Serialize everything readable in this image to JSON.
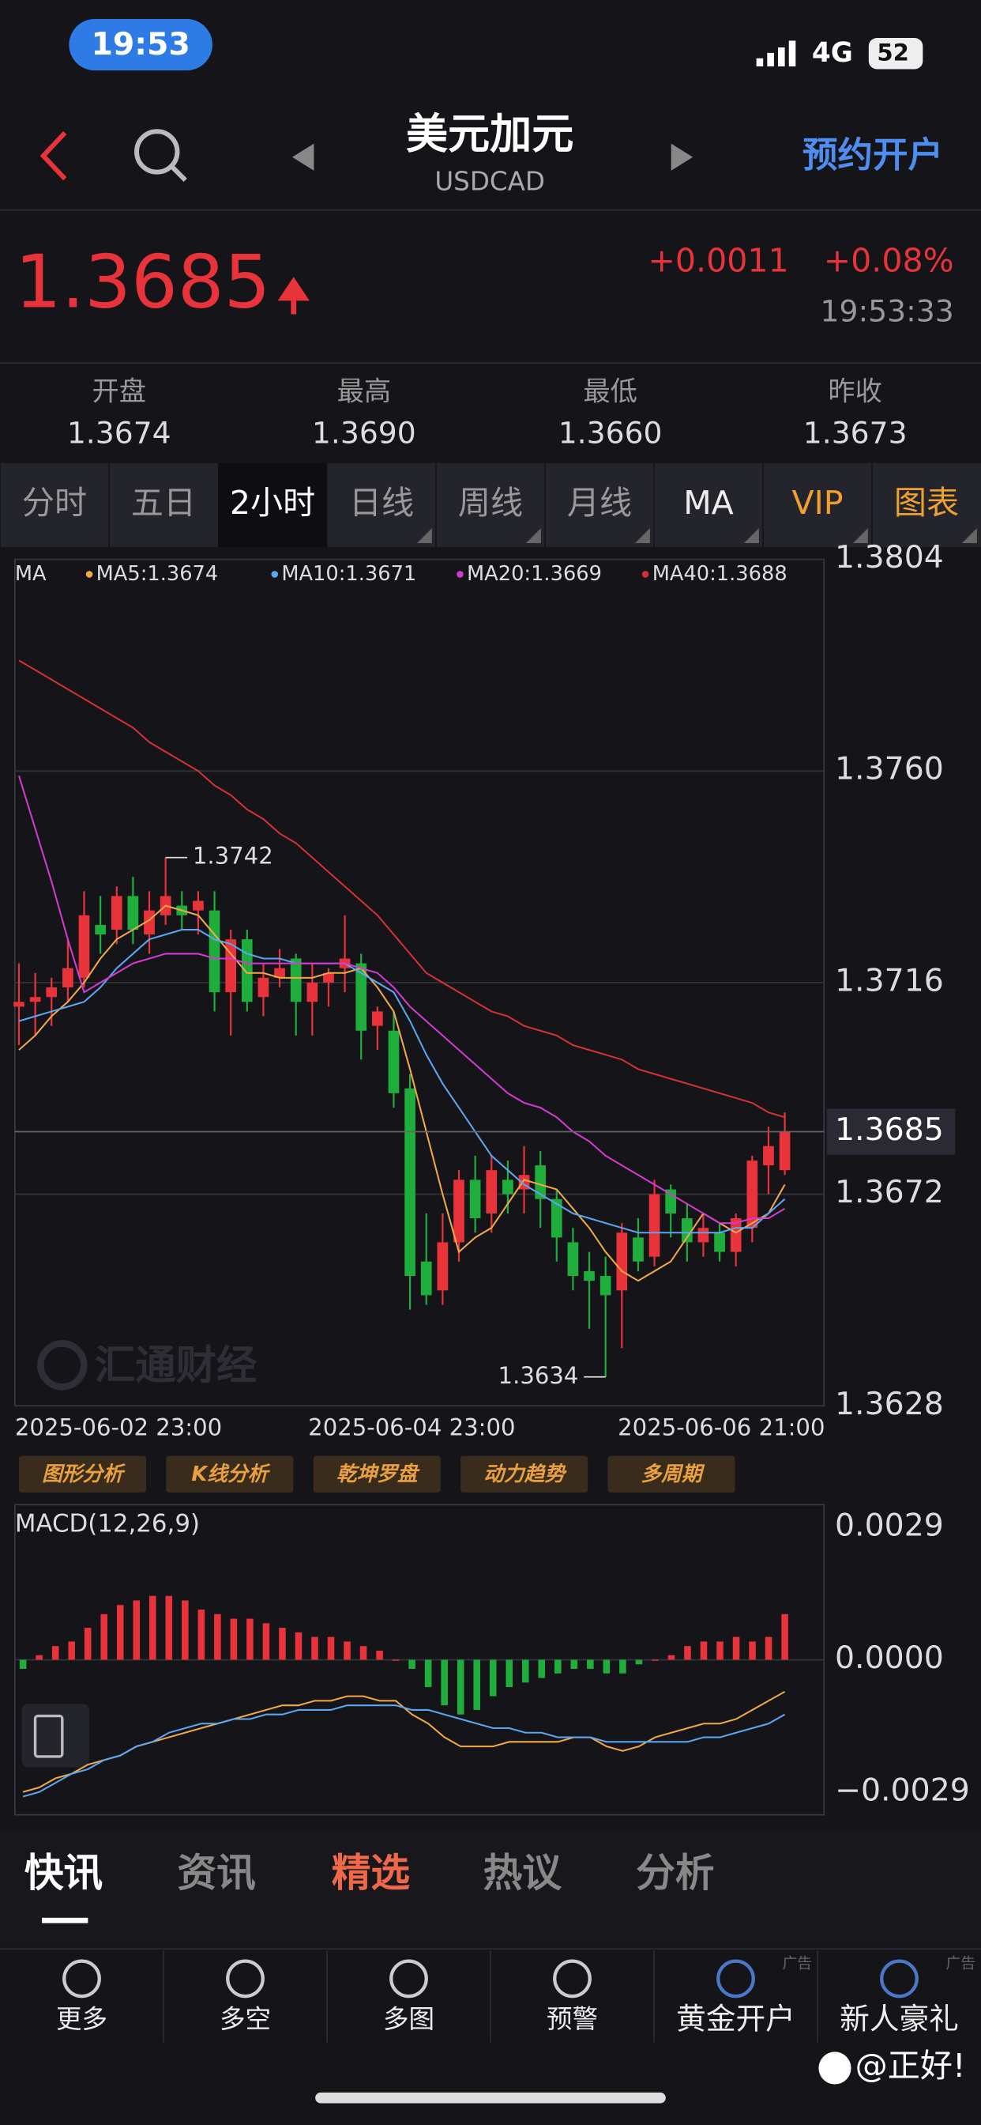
{
  "status_bar": {
    "time": "19:53",
    "network": "4G",
    "battery": "52"
  },
  "header": {
    "title": "美元加元",
    "subtitle": "USDCAD",
    "action": "预约开户"
  },
  "quote": {
    "price": 1.3685,
    "change": "+0.0011",
    "change_pct": "+0.08%",
    "time": "19:53:33"
  },
  "stats": [
    {
      "label": "开盘",
      "value": "1.3674"
    },
    {
      "label": "最高",
      "value": "1.3690"
    },
    {
      "label": "最低",
      "value": "1.3660"
    },
    {
      "label": "昨收",
      "value": "1.3673"
    }
  ],
  "period_tabs": [
    "分时",
    "五日",
    "2小时",
    "日线",
    "周线",
    "月线",
    "MA",
    "VIP",
    "图表"
  ],
  "tools": [
    "图形分析",
    "K线分析",
    "乾坤罗盘",
    "动力趋势",
    "多周期"
  ],
  "watermark": "汇通财经",
  "chart_data": [
    {
      "type": "candlestick",
      "legend_title": "MA",
      "categories": [
        "2025-06-02 23:00",
        null,
        null,
        null,
        null,
        null,
        null,
        null,
        null,
        null,
        null,
        null,
        null,
        null,
        null,
        null,
        null,
        null,
        "2025-06-04 23:00",
        null,
        null,
        null,
        null,
        null,
        null,
        null,
        null,
        null,
        null,
        null,
        null,
        null,
        null,
        null,
        null,
        null,
        null,
        "2025-06-06 21:00",
        null,
        null,
        null,
        null,
        null,
        null,
        null,
        null,
        null,
        null
      ],
      "open": [
        1.3711,
        1.3712,
        1.3713,
        1.3715,
        1.3717,
        1.3728,
        1.3727,
        1.3734,
        1.3726,
        1.373,
        1.3732,
        1.3731,
        1.3731,
        1.3714,
        1.3725,
        1.3713,
        1.3717,
        1.3721,
        1.3712,
        1.3716,
        1.3719,
        1.372,
        1.3707,
        1.3706,
        1.3694,
        1.3658,
        1.3652,
        1.3662,
        1.3675,
        1.3668,
        1.3675,
        1.3673,
        1.3678,
        1.3671,
        1.3662,
        1.3656,
        1.3655,
        1.3652,
        1.3663,
        1.3659,
        1.3673,
        1.3667,
        1.3662,
        1.3664,
        1.366,
        1.3665,
        1.3678,
        1.3677
      ],
      "high": [
        1.372,
        1.3718,
        1.3717,
        1.3725,
        1.3735,
        1.3734,
        1.3736,
        1.3738,
        1.3735,
        1.3742,
        1.3735,
        1.3735,
        1.3735,
        1.3727,
        1.3727,
        1.372,
        1.3723,
        1.3722,
        1.372,
        1.3719,
        1.373,
        1.3722,
        1.3711,
        1.371,
        1.3697,
        1.3668,
        1.3668,
        1.3677,
        1.368,
        1.368,
        1.3679,
        1.3682,
        1.3681,
        1.3673,
        1.3665,
        1.366,
        1.3659,
        1.3666,
        1.3667,
        1.3675,
        1.3674,
        1.367,
        1.3668,
        1.3666,
        1.3668,
        1.368,
        1.3686,
        1.3689
      ],
      "low": [
        1.3703,
        1.3705,
        1.3707,
        1.3712,
        1.3715,
        1.3722,
        1.3724,
        1.3724,
        1.3722,
        1.3728,
        1.3727,
        1.3726,
        1.371,
        1.3705,
        1.371,
        1.3709,
        1.3715,
        1.3705,
        1.3705,
        1.3711,
        1.3714,
        1.37,
        1.3702,
        1.369,
        1.3648,
        1.3649,
        1.3649,
        1.3658,
        1.3664,
        1.3664,
        1.3668,
        1.3668,
        1.3665,
        1.3658,
        1.3652,
        1.3644,
        1.3634,
        1.364,
        1.3656,
        1.3657,
        1.3663,
        1.3658,
        1.3659,
        1.3658,
        1.3657,
        1.3662,
        1.3672,
        1.3676
      ],
      "close": [
        1.3712,
        1.3713,
        1.3715,
        1.3719,
        1.373,
        1.3726,
        1.3734,
        1.3727,
        1.3731,
        1.3734,
        1.373,
        1.3733,
        1.3714,
        1.3725,
        1.3712,
        1.3717,
        1.3719,
        1.3712,
        1.3716,
        1.3718,
        1.3721,
        1.3706,
        1.371,
        1.3693,
        1.3655,
        1.3651,
        1.3662,
        1.3675,
        1.3667,
        1.3677,
        1.3672,
        1.3676,
        1.3671,
        1.3663,
        1.3655,
        1.3654,
        1.3651,
        1.3664,
        1.3658,
        1.3672,
        1.3668,
        1.3662,
        1.3665,
        1.366,
        1.3667,
        1.3679,
        1.3682,
        1.3685
      ],
      "up_color": "#e8333a",
      "down_color": "#1fae3b",
      "series": [
        {
          "name": "MA5:1.3674",
          "color": "#f0a848",
          "values": [
            1.3702,
            1.3705,
            1.3709,
            1.3712,
            1.3716,
            1.3721,
            1.3725,
            1.3727,
            1.3729,
            1.3732,
            1.3731,
            1.373,
            1.3726,
            1.3722,
            1.3718,
            1.3718,
            1.3717,
            1.3717,
            1.3717,
            1.3718,
            1.3718,
            1.3719,
            1.3715,
            1.371,
            1.3698,
            1.3685,
            1.3672,
            1.366,
            1.3663,
            1.3665,
            1.367,
            1.3675,
            1.3674,
            1.3673,
            1.3669,
            1.3665,
            1.366,
            1.3656,
            1.3654,
            1.3656,
            1.3658,
            1.3663,
            1.3668,
            1.3666,
            1.3664,
            1.3666,
            1.3668,
            1.3674
          ]
        },
        {
          "name": "MA10:1.3671",
          "color": "#5ba6f0",
          "values": [
            1.3708,
            1.3709,
            1.371,
            1.3711,
            1.3712,
            1.3715,
            1.3719,
            1.3722,
            1.3725,
            1.3726,
            1.3727,
            1.3727,
            1.3725,
            1.3724,
            1.3722,
            1.3721,
            1.3721,
            1.372,
            1.372,
            1.372,
            1.372,
            1.3718,
            1.3716,
            1.3714,
            1.3708,
            1.3701,
            1.3695,
            1.369,
            1.3685,
            1.368,
            1.3677,
            1.3674,
            1.3672,
            1.367,
            1.3668,
            1.3667,
            1.3666,
            1.3665,
            1.3664,
            1.3664,
            1.3664,
            1.3664,
            1.3664,
            1.3664,
            1.3665,
            1.3665,
            1.3668,
            1.3671
          ]
        },
        {
          "name": "MA20:1.3669",
          "color": "#d23ad2",
          "values": [
            1.3759,
            1.3748,
            1.3737,
            1.3725,
            1.3714,
            1.3716,
            1.3718,
            1.372,
            1.3721,
            1.3722,
            1.3722,
            1.3722,
            1.3721,
            1.3721,
            1.372,
            1.372,
            1.372,
            1.372,
            1.372,
            1.372,
            1.372,
            1.3719,
            1.3718,
            1.3715,
            1.3711,
            1.3708,
            1.3705,
            1.3702,
            1.3699,
            1.3696,
            1.3693,
            1.3691,
            1.369,
            1.3688,
            1.3685,
            1.3683,
            1.368,
            1.3678,
            1.3676,
            1.3674,
            1.3672,
            1.367,
            1.3668,
            1.3666,
            1.3666,
            1.3667,
            1.3667,
            1.3669
          ]
        },
        {
          "name": "MA40:1.3688",
          "color": "#d23232",
          "values": [
            1.3783,
            1.3781,
            1.3779,
            1.3777,
            1.3775,
            1.3773,
            1.3771,
            1.3769,
            1.3766,
            1.3764,
            1.3762,
            1.376,
            1.3757,
            1.3755,
            1.3752,
            1.375,
            1.3747,
            1.3745,
            1.3742,
            1.3739,
            1.3736,
            1.3733,
            1.373,
            1.3726,
            1.3722,
            1.3718,
            1.3716,
            1.3714,
            1.3712,
            1.371,
            1.3709,
            1.3707,
            1.3706,
            1.3705,
            1.3703,
            1.3702,
            1.3701,
            1.37,
            1.3698,
            1.3697,
            1.3696,
            1.3695,
            1.3694,
            1.3693,
            1.3692,
            1.3691,
            1.3689,
            1.3688
          ]
        }
      ],
      "ylim": [
        1.3628,
        1.3804
      ],
      "yticks": [
        1.3804,
        {
          "value": 1.376,
          "label": "1.3760"
        },
        1.3716,
        1.3672,
        1.3628
      ],
      "grid": true
    },
    {
      "type": "macd",
      "title": "MACD(12,26,9)",
      "values": [
        -0.0002,
        0.0001,
        0.0003,
        0.0004,
        0.0007,
        0.001,
        0.0012,
        0.0013,
        0.0014,
        0.0014,
        0.0013,
        0.0011,
        0.001,
        0.0009,
        0.0009,
        0.0008,
        0.0007,
        0.0006,
        0.0005,
        0.0005,
        0.0004,
        0.0003,
        0.0002,
        0,
        -0.0002,
        -0.0006,
        -0.001,
        -0.0012,
        -0.0011,
        -0.0008,
        -0.0006,
        -0.0005,
        -0.0004,
        -0.0003,
        -0.0002,
        -0.0002,
        -0.0003,
        -0.0003,
        -0.0001,
        0,
        0.0001,
        0.0003,
        0.0004,
        0.0004,
        0.0005,
        0.0004,
        0.0005,
        0.001
      ],
      "series": [
        {
          "color": "#f0a848",
          "values": [
            -0.0029,
            -0.0028,
            -0.0026,
            -0.0025,
            -0.0023,
            -0.0022,
            -0.0021,
            -0.0019,
            -0.0018,
            -0.0017,
            -0.0016,
            -0.0015,
            -0.0014,
            -0.0013,
            -0.0012,
            -0.0011,
            -0.001,
            -0.001,
            -0.0009,
            -0.0009,
            -0.0008,
            -0.0008,
            -0.0009,
            -0.0009,
            -0.0012,
            -0.0014,
            -0.0017,
            -0.0019,
            -0.0019,
            -0.0019,
            -0.0018,
            -0.0018,
            -0.0018,
            -0.0018,
            -0.0017,
            -0.0017,
            -0.0019,
            -0.002,
            -0.0019,
            -0.0017,
            -0.0016,
            -0.0015,
            -0.0014,
            -0.0014,
            -0.0013,
            -0.0011,
            -0.0009,
            -0.0007
          ]
        },
        {
          "color": "#5ba6f0",
          "values": [
            -0.003,
            -0.0029,
            -0.0027,
            -0.0025,
            -0.0024,
            -0.0022,
            -0.0021,
            -0.0019,
            -0.0018,
            -0.0016,
            -0.0015,
            -0.0014,
            -0.0014,
            -0.0013,
            -0.0013,
            -0.0012,
            -0.0012,
            -0.0011,
            -0.0011,
            -0.0011,
            -0.001,
            -0.001,
            -0.001,
            -0.001,
            -0.0011,
            -0.0011,
            -0.0012,
            -0.0013,
            -0.0014,
            -0.0015,
            -0.0015,
            -0.0016,
            -0.0016,
            -0.0017,
            -0.0017,
            -0.0017,
            -0.0018,
            -0.0018,
            -0.0018,
            -0.0018,
            -0.0018,
            -0.0018,
            -0.0017,
            -0.0017,
            -0.0016,
            -0.0015,
            -0.0014,
            -0.0012
          ]
        }
      ],
      "up_color": "#e8333a",
      "down_color": "#1fae3b",
      "ylim": [
        -0.0034,
        0.0034
      ],
      "yticks": [
        0.0029,
        {
          "value": 0,
          "label": "0.0000"
        },
        {
          "value": -0.0029,
          "label": "−0.0029"
        }
      ]
    }
  ],
  "news_tabs": [
    "快讯",
    "资讯",
    "精选",
    "热议",
    "分析"
  ],
  "nav": [
    "更多",
    "多空",
    "多图",
    "预警",
    "黄金开户",
    "新人豪礼"
  ],
  "ad_tag": "广告",
  "credit": "@正好!"
}
